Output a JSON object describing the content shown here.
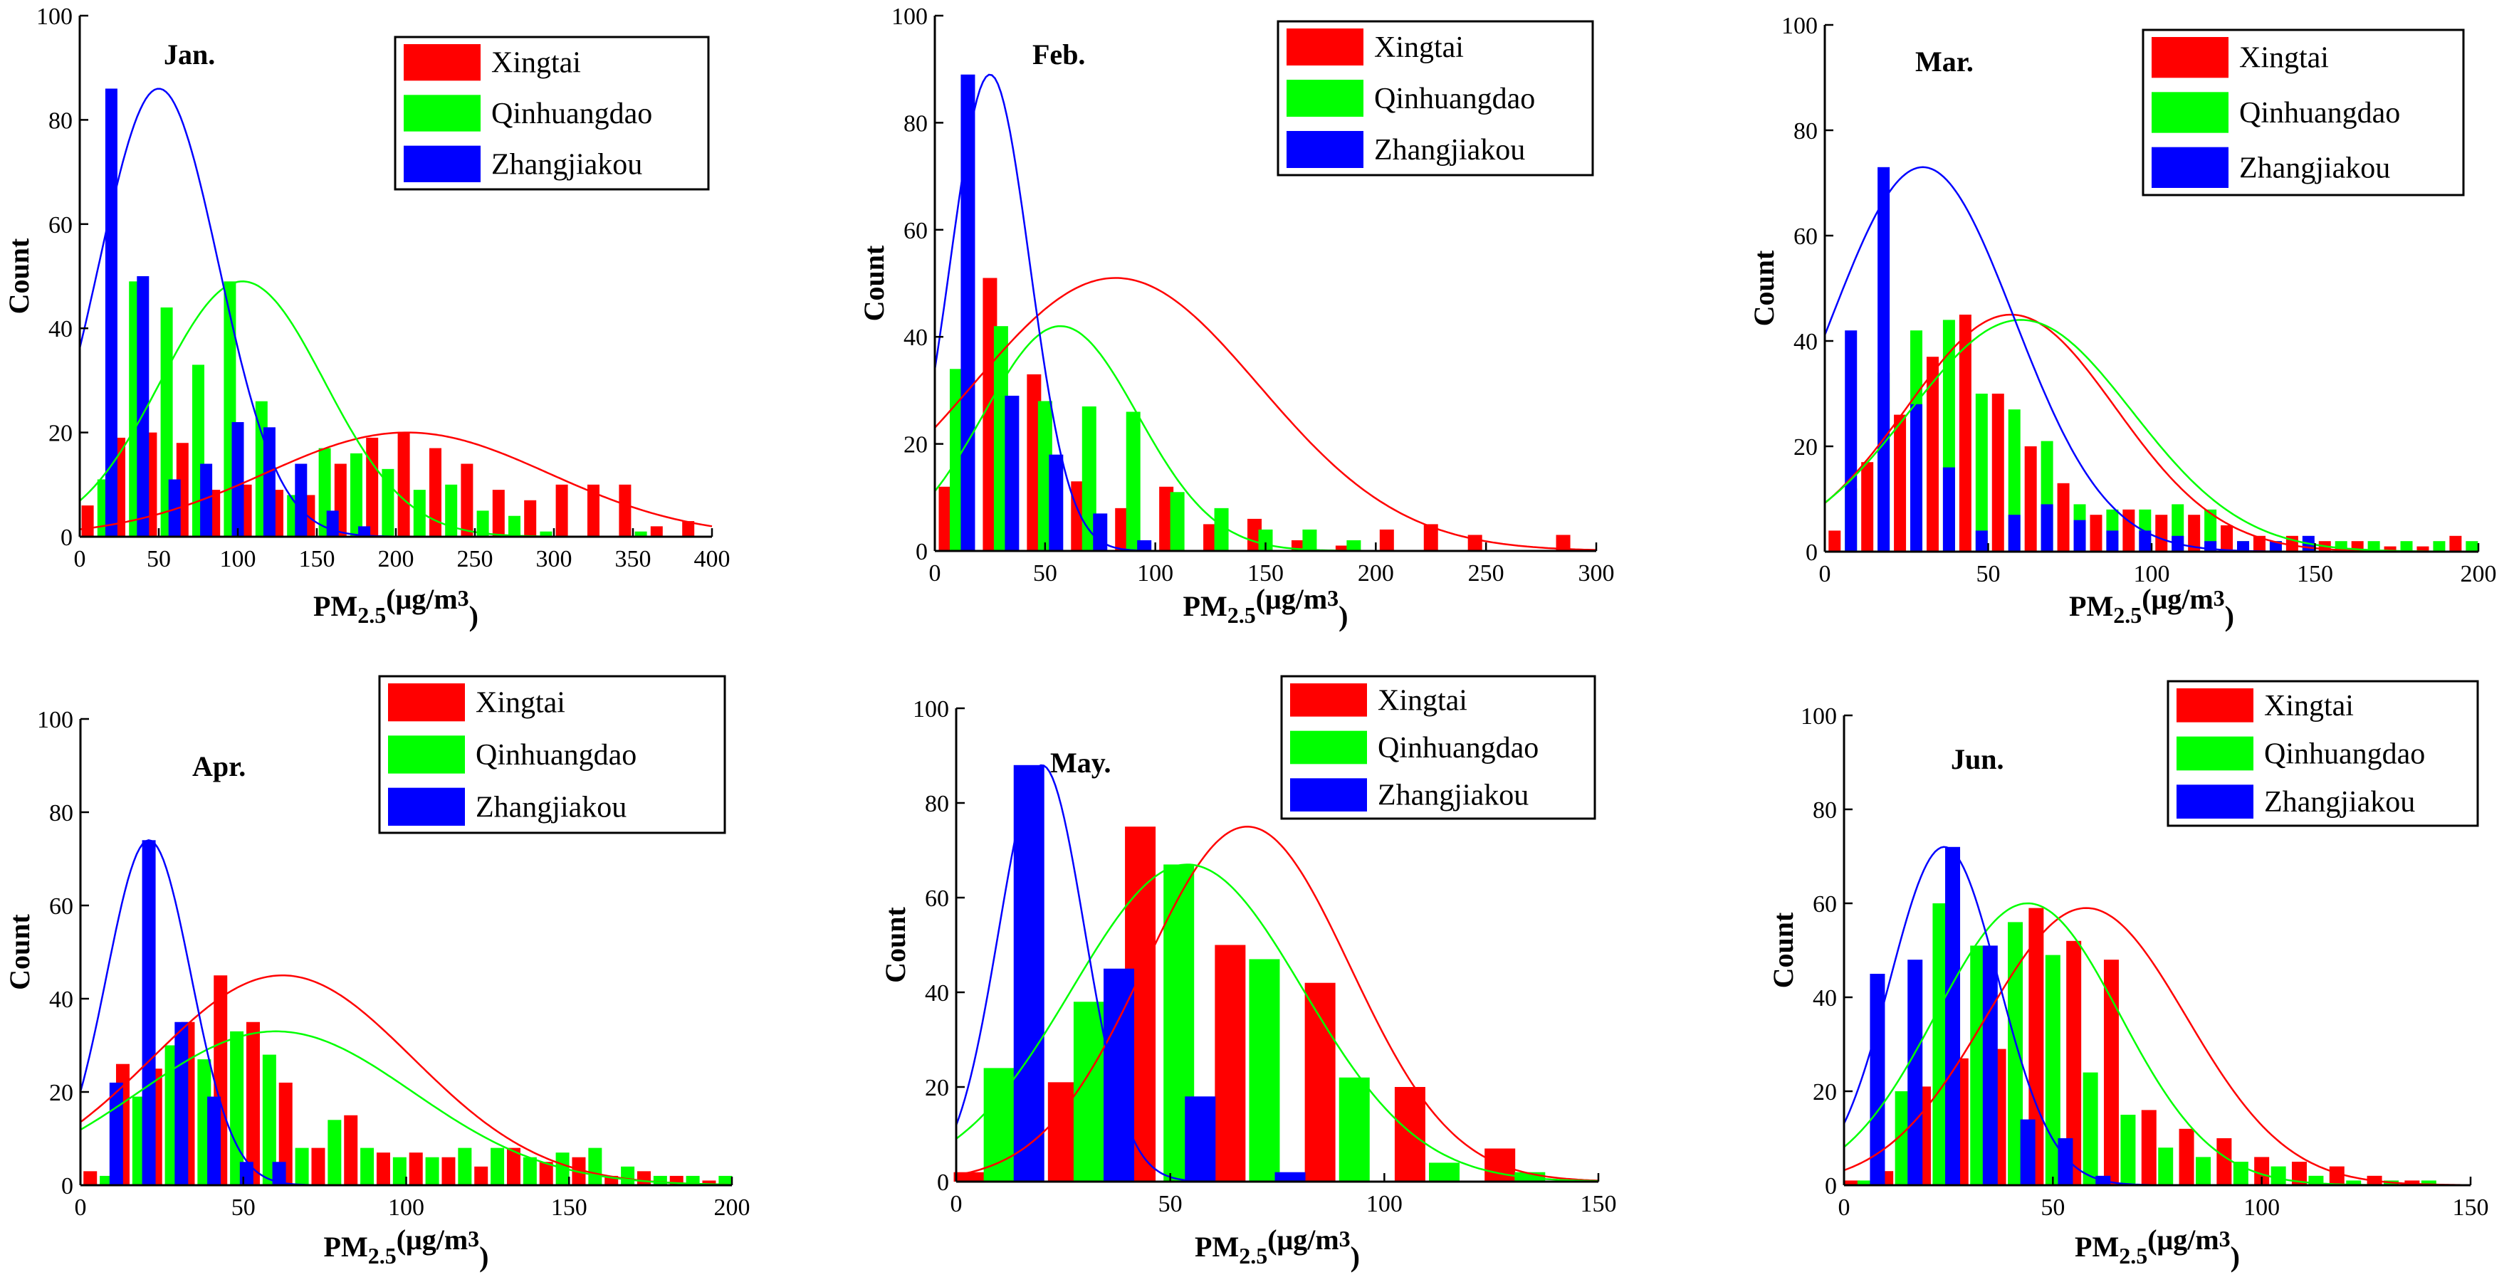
{
  "figure": {
    "series_names": [
      "Xingtai",
      "Qinhuangdao",
      "Zhangjiakou"
    ]
  },
  "chart_data": [
    {
      "type": "bar",
      "title": "Jan.",
      "xlabel": "PM2.5(μg/m3)",
      "ylabel": "Count",
      "xlim": [
        0,
        400
      ],
      "ylim": [
        0,
        100
      ],
      "xticks": [
        0,
        50,
        100,
        150,
        200,
        250,
        300,
        350,
        400
      ],
      "yticks": [
        0,
        20,
        40,
        60,
        80,
        100
      ],
      "legend": [
        "Xingtai",
        "Qinhuangdao",
        "Zhangjiakou"
      ],
      "series": [
        {
          "name": "Xingtai",
          "color": "#ff0000",
          "x": [
            5,
            25,
            45,
            65,
            85,
            105,
            125,
            145,
            165,
            185,
            205,
            225,
            245,
            265,
            285,
            305,
            325,
            345,
            365,
            385
          ],
          "values": [
            6,
            19,
            20,
            18,
            9,
            10,
            9,
            8,
            14,
            19,
            20,
            17,
            14,
            9,
            7,
            10,
            10,
            10,
            2,
            3
          ]
        },
        {
          "name": "Qinhuangdao",
          "color": "#00ff00",
          "x": [
            15,
            35,
            55,
            75,
            95,
            115,
            135,
            155,
            175,
            195,
            215,
            235,
            255,
            275,
            295,
            355
          ],
          "values": [
            11,
            49,
            44,
            33,
            49,
            26,
            8,
            17,
            16,
            13,
            9,
            10,
            5,
            4,
            1,
            1
          ]
        },
        {
          "name": "Zhangjiakou",
          "color": "#0000ff",
          "x": [
            20,
            40,
            60,
            80,
            100,
            120,
            140,
            160,
            180
          ],
          "values": [
            86,
            50,
            11,
            14,
            22,
            21,
            14,
            5,
            2
          ]
        }
      ],
      "fits": [
        {
          "name": "Xingtai",
          "mean": 207,
          "sd": 90,
          "peak": 20
        },
        {
          "name": "Qinhuangdao",
          "mean": 103,
          "sd": 52,
          "peak": 49
        },
        {
          "name": "Zhangjiakou",
          "mean": 50,
          "sd": 38,
          "peak": 86
        }
      ]
    },
    {
      "type": "bar",
      "title": "Feb.",
      "xlabel": "PM2.5(μg/m3)",
      "ylabel": "Count",
      "xlim": [
        0,
        300
      ],
      "ylim": [
        0,
        100
      ],
      "xticks": [
        0,
        50,
        100,
        150,
        200,
        250,
        300
      ],
      "yticks": [
        0,
        20,
        40,
        60,
        80,
        100
      ],
      "legend": [
        "Xingtai",
        "Qinhuangdao",
        "Zhangjiakou"
      ],
      "series": [
        {
          "name": "Xingtai",
          "color": "#ff0000",
          "x": [
            5,
            25,
            45,
            65,
            85,
            105,
            125,
            145,
            165,
            185,
            205,
            225,
            245,
            285
          ],
          "values": [
            12,
            51,
            33,
            13,
            8,
            12,
            5,
            6,
            2,
            1,
            4,
            5,
            3,
            3
          ]
        },
        {
          "name": "Qinhuangdao",
          "color": "#00ff00",
          "x": [
            10,
            30,
            50,
            70,
            90,
            110,
            130,
            150,
            170,
            190
          ],
          "values": [
            34,
            42,
            28,
            27,
            26,
            11,
            8,
            4,
            4,
            2
          ]
        },
        {
          "name": "Zhangjiakou",
          "color": "#0000ff",
          "x": [
            15,
            35,
            55,
            75,
            95
          ],
          "values": [
            89,
            29,
            18,
            7,
            2
          ]
        }
      ],
      "fits": [
        {
          "name": "Xingtai",
          "mean": 82,
          "sd": 65,
          "peak": 51
        },
        {
          "name": "Qinhuangdao",
          "mean": 57,
          "sd": 35,
          "peak": 42
        },
        {
          "name": "Zhangjiakou",
          "mean": 25,
          "sd": 18,
          "peak": 89
        }
      ]
    },
    {
      "type": "bar",
      "title": "Mar.",
      "xlabel": "PM2.5(μg/m3)",
      "ylabel": "Count",
      "xlim": [
        0,
        200
      ],
      "ylim": [
        0,
        100
      ],
      "xticks": [
        0,
        50,
        100,
        150,
        200
      ],
      "yticks": [
        0,
        20,
        40,
        60,
        80,
        100
      ],
      "legend": [
        "Xingtai",
        "Qinhuangdao",
        "Zhangjiakou"
      ],
      "series": [
        {
          "name": "Xingtai",
          "color": "#ff0000",
          "x": [
            3,
            13,
            23,
            33,
            43,
            53,
            63,
            73,
            83,
            93,
            103,
            113,
            123,
            133,
            143,
            153,
            163,
            173,
            183,
            193
          ],
          "values": [
            4,
            17,
            26,
            37,
            45,
            30,
            20,
            13,
            7,
            8,
            7,
            7,
            5,
            3,
            3,
            2,
            2,
            1,
            1,
            3
          ]
        },
        {
          "name": "Qinhuangdao",
          "color": "#00ff00",
          "x": [
            8,
            18,
            28,
            38,
            48,
            58,
            68,
            78,
            88,
            98,
            108,
            118,
            128,
            138,
            148,
            158,
            168,
            178,
            188,
            198
          ],
          "values": [
            12,
            34,
            42,
            44,
            30,
            27,
            21,
            9,
            8,
            8,
            9,
            8,
            2,
            2,
            2,
            2,
            2,
            2,
            2,
            2
          ]
        },
        {
          "name": "Zhangjiakou",
          "color": "#0000ff",
          "x": [
            8,
            18,
            28,
            38,
            48,
            58,
            68,
            78,
            88,
            98,
            108,
            118,
            128,
            138,
            148
          ],
          "values": [
            42,
            73,
            28,
            16,
            4,
            7,
            9,
            6,
            4,
            4,
            3,
            2,
            2,
            2,
            3
          ]
        }
      ],
      "fits": [
        {
          "name": "Xingtai",
          "mean": 57,
          "sd": 32,
          "peak": 45
        },
        {
          "name": "Qinhuangdao",
          "mean": 60,
          "sd": 34,
          "peak": 44
        },
        {
          "name": "Zhangjiakou",
          "mean": 30,
          "sd": 28,
          "peak": 73
        }
      ]
    },
    {
      "type": "bar",
      "title": "Apr.",
      "xlabel": "PM2.5(μg/m3)",
      "ylabel": "Count",
      "xlim": [
        0,
        200
      ],
      "ylim": [
        0,
        100
      ],
      "xticks": [
        0,
        50,
        100,
        150,
        200
      ],
      "yticks": [
        0,
        20,
        40,
        60,
        80,
        100
      ],
      "legend": [
        "Xingtai",
        "Qinhuangdao",
        "Zhangjiakou"
      ],
      "series": [
        {
          "name": "Xingtai",
          "color": "#ff0000",
          "x": [
            3,
            13,
            23,
            33,
            43,
            53,
            63,
            73,
            83,
            93,
            103,
            113,
            123,
            133,
            143,
            153,
            163,
            173,
            183,
            193
          ],
          "values": [
            3,
            26,
            25,
            35,
            45,
            35,
            22,
            8,
            15,
            7,
            7,
            6,
            4,
            8,
            5,
            6,
            2,
            3,
            2,
            1
          ]
        },
        {
          "name": "Qinhuangdao",
          "color": "#00ff00",
          "x": [
            8,
            18,
            28,
            38,
            48,
            58,
            68,
            78,
            88,
            98,
            108,
            118,
            128,
            138,
            148,
            158,
            168,
            178,
            188,
            198
          ],
          "values": [
            2,
            19,
            30,
            27,
            33,
            28,
            8,
            14,
            8,
            6,
            6,
            8,
            8,
            6,
            7,
            8,
            4,
            2,
            2,
            2
          ]
        },
        {
          "name": "Zhangjiakou",
          "color": "#0000ff",
          "x": [
            11,
            21,
            31,
            41,
            51,
            61
          ],
          "values": [
            22,
            74,
            35,
            19,
            5,
            5
          ]
        }
      ],
      "fits": [
        {
          "name": "Xingtai",
          "mean": 62,
          "sd": 40,
          "peak": 45
        },
        {
          "name": "Qinhuangdao",
          "mean": 60,
          "sd": 42,
          "peak": 33
        },
        {
          "name": "Zhangjiakou",
          "mean": 21,
          "sd": 13,
          "peak": 74
        }
      ]
    },
    {
      "type": "bar",
      "title": "May.",
      "xlabel": "PM2.5(μg/m3)",
      "ylabel": "Count",
      "xlim": [
        0,
        150
      ],
      "ylim": [
        0,
        100
      ],
      "xticks": [
        0,
        50,
        100,
        150
      ],
      "yticks": [
        0,
        20,
        40,
        60,
        80,
        100
      ],
      "legend": [
        "Xingtai",
        "Qinhuangdao",
        "Zhangjiakou"
      ],
      "series": [
        {
          "name": "Xingtai",
          "color": "#ff0000",
          "x": [
            3,
            25,
            43,
            64,
            85,
            106,
            127
          ],
          "values": [
            2,
            21,
            75,
            50,
            42,
            20,
            7
          ]
        },
        {
          "name": "Qinhuangdao",
          "color": "#00ff00",
          "x": [
            10,
            31,
            52,
            72,
            93,
            114,
            134
          ],
          "values": [
            24,
            38,
            67,
            47,
            22,
            4,
            2
          ]
        },
        {
          "name": "Zhangjiakou",
          "color": "#0000ff",
          "x": [
            17,
            38,
            57,
            78
          ],
          "values": [
            88,
            45,
            18,
            2
          ]
        }
      ],
      "fits": [
        {
          "name": "Xingtai",
          "mean": 68,
          "sd": 24,
          "peak": 75
        },
        {
          "name": "Qinhuangdao",
          "mean": 54,
          "sd": 27,
          "peak": 67
        },
        {
          "name": "Zhangjiakou",
          "mean": 20,
          "sd": 10,
          "peak": 88
        }
      ]
    },
    {
      "type": "bar",
      "title": "Jun.",
      "xlabel": "PM2.5(μg/m3)",
      "ylabel": "Count",
      "xlim": [
        0,
        150
      ],
      "ylim": [
        0,
        100
      ],
      "xticks": [
        0,
        50,
        100,
        150
      ],
      "yticks": [
        0,
        20,
        40,
        60,
        80,
        100
      ],
      "legend": [
        "Xingtai",
        "Qinhuangdao",
        "Zhangjiakou"
      ],
      "series": [
        {
          "name": "Xingtai",
          "color": "#ff0000",
          "x": [
            2,
            10,
            19,
            28,
            37,
            46,
            55,
            64,
            73,
            82,
            91,
            100,
            109,
            118,
            127,
            136
          ],
          "values": [
            1,
            3,
            21,
            27,
            29,
            59,
            52,
            48,
            16,
            12,
            10,
            6,
            5,
            4,
            2,
            1
          ]
        },
        {
          "name": "Qinhuangdao",
          "color": "#00ff00",
          "x": [
            5,
            14,
            23,
            32,
            41,
            50,
            59,
            68,
            77,
            86,
            95,
            104,
            113,
            122,
            131,
            140
          ],
          "values": [
            1,
            20,
            60,
            51,
            56,
            49,
            24,
            15,
            8,
            6,
            5,
            4,
            2,
            1,
            1,
            1
          ]
        },
        {
          "name": "Zhangjiakou",
          "color": "#0000ff",
          "x": [
            8,
            17,
            26,
            35,
            44,
            53,
            62
          ],
          "values": [
            45,
            48,
            72,
            51,
            14,
            10,
            2
          ]
        }
      ],
      "fits": [
        {
          "name": "Xingtai",
          "mean": 58,
          "sd": 24,
          "peak": 59
        },
        {
          "name": "Qinhuangdao",
          "mean": 44,
          "sd": 22,
          "peak": 60
        },
        {
          "name": "Zhangjiakou",
          "mean": 24,
          "sd": 13,
          "peak": 72
        }
      ]
    }
  ]
}
